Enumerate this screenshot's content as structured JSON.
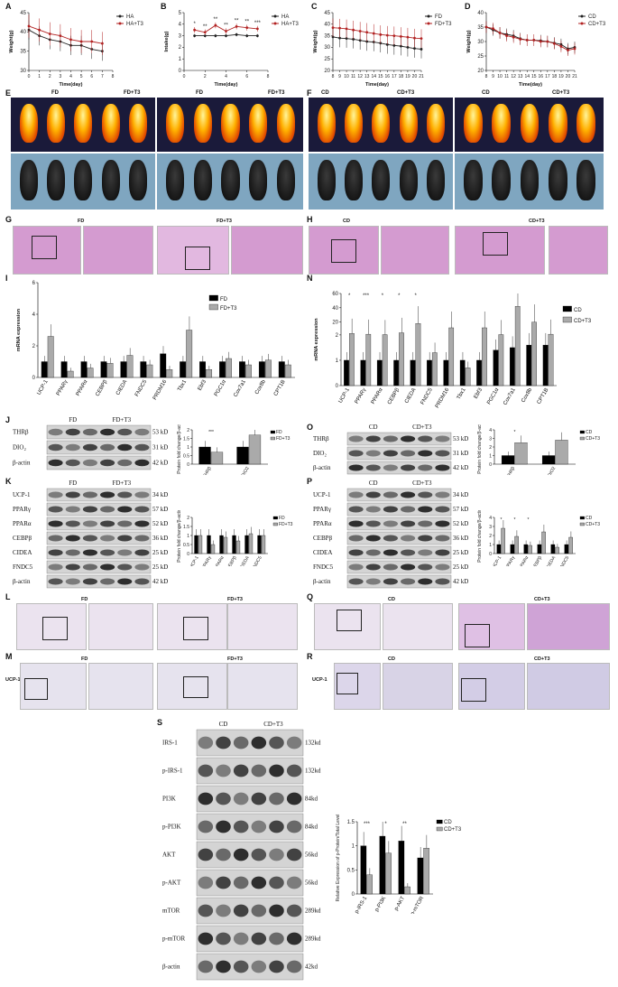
{
  "panels": {
    "A": "A",
    "B": "B",
    "C": "C",
    "D": "D",
    "E": "E",
    "F": "F",
    "G": "G",
    "H": "H",
    "I": "I",
    "J": "J",
    "K": "K",
    "L": "L",
    "M": "M",
    "N": "N",
    "O": "O",
    "P": "P",
    "Q": "Q",
    "R": "R",
    "S": "S"
  },
  "groups": {
    "fd": "FD",
    "fdt3": "FD+T3",
    "cd": "CD",
    "cdt3": "CD+T3",
    "ha": "HA",
    "hat3": "HA+T3",
    "ucp1": "UCP-1"
  },
  "chart_data": [
    {
      "id": "A",
      "type": "line",
      "xlabel": "Time(day)",
      "ylabel": "Weight(g)",
      "x": [
        0,
        1,
        2,
        3,
        4,
        5,
        6,
        7
      ],
      "ylim": [
        30,
        45
      ],
      "xlim": [
        0,
        8
      ],
      "yticks": [
        30,
        35,
        40,
        45
      ],
      "xticks": [
        0,
        1,
        2,
        3,
        4,
        5,
        6,
        7,
        8
      ],
      "series": [
        {
          "name": "HA",
          "values": [
            40.5,
            39.0,
            38.0,
            37.5,
            36.5,
            36.5,
            35.5,
            35.0
          ],
          "err": 2.5,
          "color": "#222222"
        },
        {
          "name": "HA+T3",
          "values": [
            41.5,
            40.5,
            39.5,
            39.0,
            38.0,
            37.5,
            37.5,
            37.0
          ],
          "err": 3.0,
          "color": "#b22222"
        }
      ]
    },
    {
      "id": "B",
      "type": "line",
      "xlabel": "Time(day)",
      "ylabel": "Intake(g)",
      "x": [
        1,
        2,
        3,
        4,
        5,
        6,
        7
      ],
      "ylim": [
        0,
        5
      ],
      "xlim": [
        0,
        8
      ],
      "yticks": [
        0,
        1,
        2,
        3,
        4,
        5
      ],
      "xticks": [
        0,
        2,
        4,
        6,
        8
      ],
      "series": [
        {
          "name": "HA",
          "values": [
            3.0,
            3.0,
            3.0,
            3.0,
            3.1,
            3.0,
            3.0
          ],
          "err": 0.15,
          "color": "#222222"
        },
        {
          "name": "HA+T3",
          "values": [
            3.5,
            3.3,
            3.9,
            3.4,
            3.8,
            3.7,
            3.6
          ],
          "err": 0.25,
          "color": "#b22222"
        }
      ],
      "annotations": [
        "*",
        "**",
        "**",
        "**",
        "**",
        "**",
        "***"
      ]
    },
    {
      "id": "C",
      "type": "line",
      "xlabel": "Time(day)",
      "ylabel": "Weight(g)",
      "x": [
        8,
        9,
        10,
        11,
        12,
        13,
        14,
        15,
        16,
        17,
        18,
        19,
        20,
        21
      ],
      "ylim": [
        20,
        45
      ],
      "xlim": [
        8,
        21
      ],
      "yticks": [
        20,
        25,
        30,
        35,
        40,
        45
      ],
      "xticks": [
        8,
        9,
        10,
        11,
        12,
        13,
        14,
        15,
        16,
        17,
        18,
        19,
        20,
        21
      ],
      "series": [
        {
          "name": "FD",
          "values": [
            34.5,
            34.0,
            33.8,
            33.5,
            33.0,
            32.5,
            32.3,
            31.8,
            31.2,
            30.8,
            30.5,
            30.0,
            29.5,
            29.2
          ],
          "err": 4,
          "color": "#222222"
        },
        {
          "name": "FD+T3",
          "values": [
            38.5,
            38.3,
            38.0,
            37.5,
            37.0,
            36.5,
            36.0,
            35.5,
            35.2,
            35.0,
            34.7,
            34.4,
            34.0,
            33.8
          ],
          "err": 4,
          "color": "#b22222"
        }
      ]
    },
    {
      "id": "D",
      "type": "line",
      "xlabel": "Time(day)",
      "ylabel": "Weight(g)",
      "x": [
        8,
        9,
        10,
        11,
        12,
        13,
        14,
        15,
        16,
        17,
        18,
        19,
        20,
        21
      ],
      "ylim": [
        20,
        40
      ],
      "xlim": [
        8,
        21
      ],
      "yticks": [
        20,
        25,
        30,
        35,
        40
      ],
      "xticks": [
        8,
        9,
        10,
        11,
        12,
        13,
        14,
        15,
        16,
        17,
        18,
        19,
        20,
        21
      ],
      "series": [
        {
          "name": "CD",
          "values": [
            35.0,
            34.0,
            33.0,
            32.5,
            32.0,
            31.0,
            30.5,
            30.5,
            30.3,
            30.0,
            29.5,
            29.0,
            27.5,
            28.0
          ],
          "err": 2,
          "color": "#222222"
        },
        {
          "name": "CD+T3",
          "values": [
            35.0,
            34.5,
            33.0,
            32.0,
            31.5,
            30.8,
            30.5,
            30.5,
            30.0,
            30.0,
            29.3,
            28.3,
            27.0,
            27.5
          ],
          "err": 2,
          "color": "#b22222"
        }
      ]
    },
    {
      "id": "I",
      "type": "bar",
      "ylabel": "mRNA expression",
      "ylim": [
        0,
        6
      ],
      "yticks": [
        0,
        2,
        4,
        6
      ],
      "categories": [
        "UCP-1",
        "PPARγ",
        "PPARα",
        "CEBPβ",
        "CIEDA",
        "FNDC5",
        "PRDM16",
        "Tbx1",
        "Ebf3",
        "PGC1α",
        "Cox7a1",
        "Cox8b",
        "CPT1B"
      ],
      "series": [
        {
          "name": "FD",
          "values": [
            1,
            1,
            1,
            1,
            1,
            1,
            1.5,
            1,
            1,
            1,
            1,
            1,
            1
          ],
          "color": "#000000"
        },
        {
          "name": "FD+T3",
          "values": [
            2.6,
            0.4,
            0.6,
            0.9,
            1.4,
            0.8,
            0.5,
            3.0,
            0.5,
            1.2,
            0.8,
            1.1,
            0.8
          ],
          "color": "#aaaaaa"
        }
      ]
    },
    {
      "id": "N",
      "type": "bar",
      "ylabel": "mRNA expression",
      "ylim": [
        0,
        60
      ],
      "yticks": [
        0,
        1,
        2,
        20,
        40,
        60
      ],
      "categories": [
        "UCP-1",
        "PPARγ",
        "PPARα",
        "CEBPβ",
        "CIEDA",
        "FNDC5",
        "PRDM16",
        "Tbx1",
        "Ebf3",
        "PGC1α",
        "Cox7a1",
        "Cox8b",
        "CPT1B"
      ],
      "series": [
        {
          "name": "CD",
          "values": [
            1,
            1,
            1,
            1,
            1,
            1,
            1,
            1,
            1,
            1.4,
            1.5,
            1.6,
            1.6
          ],
          "color": "#000000"
        },
        {
          "name": "CD+T3",
          "values": [
            4,
            3,
            2.5,
            5,
            18,
            1.3,
            12,
            0.7,
            12,
            2.5,
            42,
            20,
            3
          ],
          "color": "#aaaaaa"
        }
      ],
      "annotations": [
        "*",
        "***",
        "*",
        "*",
        "*"
      ]
    },
    {
      "id": "J-chart",
      "type": "bar",
      "ylabel": "Protein fold change/β-actin",
      "ylim": [
        0,
        2
      ],
      "yticks": [
        0.0,
        0.5,
        1.0,
        1.5,
        2.0
      ],
      "categories": [
        "THRβ",
        "DIO2"
      ],
      "series": [
        {
          "name": "FD",
          "values": [
            1.0,
            1.0
          ],
          "color": "#000000"
        },
        {
          "name": "FD+T3",
          "values": [
            0.7,
            1.7
          ],
          "color": "#aaaaaa"
        }
      ],
      "annotations": [
        "***"
      ]
    },
    {
      "id": "K-chart",
      "type": "bar",
      "ylabel": "Protein fold change/β-actin",
      "ylim": [
        0,
        2
      ],
      "yticks": [
        0.0,
        0.5,
        1.0,
        1.5,
        2.0
      ],
      "categories": [
        "UCP-1",
        "PPARγ",
        "PPARα",
        "CEBPβ",
        "CIEDA",
        "FNDC5"
      ],
      "series": [
        {
          "name": "FD",
          "values": [
            1,
            1,
            1,
            1,
            1,
            1
          ],
          "color": "#000000"
        },
        {
          "name": "FD+T3",
          "values": [
            1,
            0.5,
            0.9,
            0.7,
            1.1,
            1.0
          ],
          "color": "#aaaaaa"
        }
      ]
    },
    {
      "id": "O-chart",
      "type": "bar",
      "ylabel": "Protein fold change/β-actin",
      "ylim": [
        0,
        4
      ],
      "yticks": [
        0,
        1,
        2,
        3,
        4
      ],
      "categories": [
        "THRβ",
        "DIO2"
      ],
      "series": [
        {
          "name": "CD",
          "values": [
            1.0,
            1.0
          ],
          "color": "#000000"
        },
        {
          "name": "CD+T3",
          "values": [
            2.5,
            2.8
          ],
          "color": "#aaaaaa"
        }
      ],
      "annotations": [
        "*"
      ]
    },
    {
      "id": "P-chart",
      "type": "bar",
      "ylabel": "Protein fold change/β-actin",
      "ylim": [
        0,
        4
      ],
      "yticks": [
        0,
        1,
        2,
        3,
        4
      ],
      "categories": [
        "UCP-1",
        "PPARγ",
        "PPARα",
        "CEBPβ",
        "CIEDA",
        "FNDC5"
      ],
      "series": [
        {
          "name": "CD",
          "values": [
            1,
            1,
            1,
            1,
            1,
            1
          ],
          "color": "#000000"
        },
        {
          "name": "CD+T3",
          "values": [
            2.8,
            1.9,
            0.9,
            2.4,
            0.7,
            1.8
          ],
          "color": "#aaaaaa"
        }
      ],
      "annotations": [
        "*",
        "*",
        "*"
      ]
    },
    {
      "id": "S-chart",
      "type": "bar",
      "ylabel": "Relative Expression of p-Protein/Total Level",
      "ylim": [
        0,
        1.5
      ],
      "yticks": [
        0.0,
        0.5,
        1.0,
        1.5
      ],
      "categories": [
        "p-IRS-1",
        "p-PI3K",
        "p-AKT",
        "p-mTOR"
      ],
      "series": [
        {
          "name": "CD",
          "values": [
            1.0,
            1.2,
            1.1,
            0.75
          ],
          "color": "#000000"
        },
        {
          "name": "CD+T3",
          "values": [
            0.4,
            0.85,
            0.15,
            0.95
          ],
          "color": "#aaaaaa"
        }
      ],
      "annotations": [
        "***",
        "*",
        "**"
      ]
    }
  ],
  "blots": {
    "J": {
      "rows": [
        {
          "name": "THRβ",
          "kd": "53 kD"
        },
        {
          "name": "DIO₂",
          "kd": "31 kD"
        },
        {
          "name": "β-actin",
          "kd": "42 kD"
        }
      ]
    },
    "K": {
      "rows": [
        {
          "name": "UCP-1",
          "kd": "34 kD"
        },
        {
          "name": "PPARγ",
          "kd": "57 kD"
        },
        {
          "name": "PPARα",
          "kd": "52 kD"
        },
        {
          "name": "CEBPβ",
          "kd": "36 kD"
        },
        {
          "name": "CIDEA",
          "kd": "25 kD"
        },
        {
          "name": "FNDC5",
          "kd": "25 kD"
        },
        {
          "name": "β-actin",
          "kd": "42 kD"
        }
      ]
    },
    "O": {
      "rows": [
        {
          "name": "THRβ",
          "kd": "53 kD"
        },
        {
          "name": "DIO₂",
          "kd": "31 kD"
        },
        {
          "name": "β-actin",
          "kd": "42 kD"
        }
      ]
    },
    "P": {
      "rows": [
        {
          "name": "UCP-1",
          "kd": "34 kD"
        },
        {
          "name": "PPARγ",
          "kd": "57 kD"
        },
        {
          "name": "PPARα",
          "kd": "52 kD"
        },
        {
          "name": "CEBPβ",
          "kd": "36 kD"
        },
        {
          "name": "CIDEA",
          "kd": "25 kD"
        },
        {
          "name": "FNDC5",
          "kd": "25 kD"
        },
        {
          "name": "β-actin",
          "kd": "42 kD"
        }
      ]
    },
    "S": {
      "rows": [
        {
          "name": "IRS-1",
          "kd": "132kd"
        },
        {
          "name": "p-IRS-1",
          "kd": "132kd"
        },
        {
          "name": "PI3K",
          "kd": "84kd"
        },
        {
          "name": "p-PI3K",
          "kd": "84kd"
        },
        {
          "name": "AKT",
          "kd": "56kd"
        },
        {
          "name": "p-AKT",
          "kd": "56kd"
        },
        {
          "name": "mTOR",
          "kd": "289kd"
        },
        {
          "name": "p-mTOR",
          "kd": "289kd"
        },
        {
          "name": "β-actin",
          "kd": "42kd"
        }
      ]
    }
  }
}
